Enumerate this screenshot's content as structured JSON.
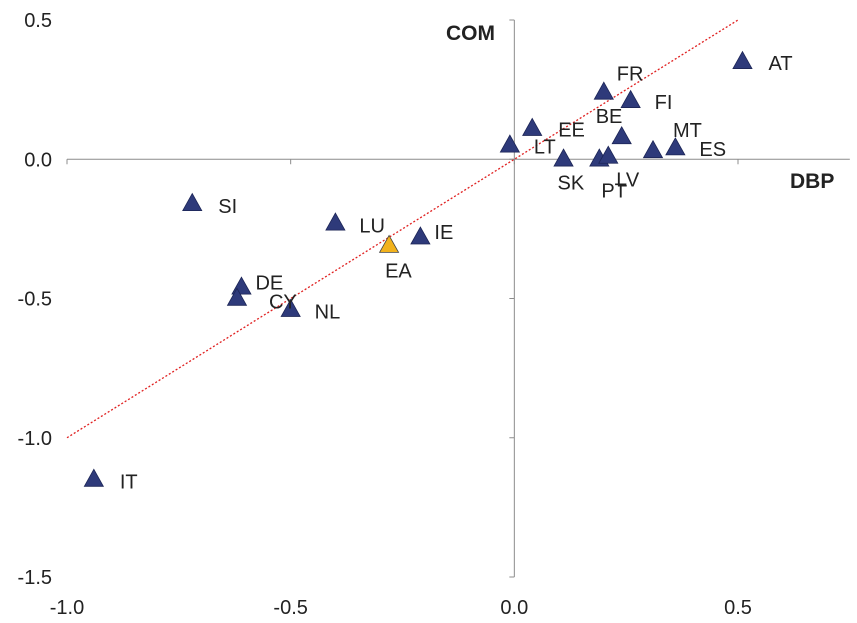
{
  "chart_data": {
    "type": "scatter",
    "title": "",
    "xlabel": "DBP",
    "ylabel": "COM",
    "xlim": [
      -1.0,
      0.75
    ],
    "ylim": [
      -1.5,
      0.5
    ],
    "xticks": [
      -1.0,
      -0.5,
      0.0,
      0.5
    ],
    "yticks": [
      -1.5,
      -1.0,
      -0.5,
      0.0,
      0.5
    ],
    "xtick_labels": [
      "-1.0",
      "-0.5",
      "0.0",
      "0.5"
    ],
    "ytick_labels": [
      "-1.5",
      "-1.0",
      "-0.5",
      "0.0",
      "0.5"
    ],
    "grid": false,
    "marker_color": "#2E3A7A",
    "highlight_color": "#F2B21C",
    "trend_color": "#E02020",
    "trendline": {
      "style": "dotted",
      "points": [
        [
          -1.0,
          -1.0
        ],
        [
          0.5,
          0.5
        ]
      ]
    },
    "points": [
      {
        "label": "AT",
        "x": 0.51,
        "y": 0.35
      },
      {
        "label": "FR",
        "x": 0.2,
        "y": 0.24
      },
      {
        "label": "FI",
        "x": 0.26,
        "y": 0.21
      },
      {
        "label": "EE",
        "x": 0.04,
        "y": 0.11
      },
      {
        "label": "BE",
        "x": 0.24,
        "y": 0.08
      },
      {
        "label": "MT",
        "x": 0.31,
        "y": 0.03
      },
      {
        "label": "ES",
        "x": 0.36,
        "y": 0.04
      },
      {
        "label": "LT",
        "x": -0.01,
        "y": 0.05
      },
      {
        "label": "SK",
        "x": 0.11,
        "y": 0.0
      },
      {
        "label": "PT",
        "x": 0.19,
        "y": 0.0
      },
      {
        "label": "LV",
        "x": 0.21,
        "y": 0.01
      },
      {
        "label": "SI",
        "x": -0.72,
        "y": -0.16
      },
      {
        "label": "LU",
        "x": -0.4,
        "y": -0.23
      },
      {
        "label": "IE",
        "x": -0.21,
        "y": -0.28
      },
      {
        "label": "EA",
        "x": -0.28,
        "y": -0.31,
        "highlight": true
      },
      {
        "label": "DE",
        "x": -0.61,
        "y": -0.46
      },
      {
        "label": "CY",
        "x": -0.62,
        "y": -0.5
      },
      {
        "label": "NL",
        "x": -0.5,
        "y": -0.54
      },
      {
        "label": "IT",
        "x": -0.94,
        "y": -1.15
      }
    ]
  }
}
